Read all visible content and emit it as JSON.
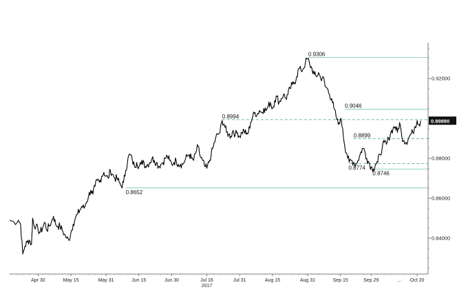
{
  "chart_data": {
    "type": "line",
    "title": "",
    "xlabel": "",
    "ylabel": "",
    "ylim": [
      0.822,
      0.938
    ],
    "yticks": [
      "0.92000",
      "0.90000",
      "0.88000",
      "0.86000",
      "0.84000"
    ],
    "ytick_values": [
      0.92,
      0.9,
      0.88,
      0.86,
      0.84
    ],
    "xtick_labels": [
      {
        "label": "Apr 30",
        "day": 13
      },
      {
        "label": "May 15",
        "day": 28
      },
      {
        "label": "May 31",
        "day": 44
      },
      {
        "label": "Jun 15",
        "day": 59
      },
      {
        "label": "Jun 30",
        "day": 74
      },
      {
        "label": "Jul 16",
        "day": 90
      },
      {
        "label": "Jul 31",
        "day": 105
      },
      {
        "label": "Aug 15",
        "day": 120
      },
      {
        "label": "Aug 31",
        "day": 136
      },
      {
        "label": "Sep 15",
        "day": 151
      },
      {
        "label": "Sep 29",
        "day": 165
      },
      {
        "label": "Oct 20",
        "day": 186
      }
    ],
    "year_label": {
      "label": "2017",
      "day": 90
    },
    "ellipsis_label": {
      "label": "...",
      "day": 178
    },
    "x_range_days": [
      0,
      191
    ],
    "last_value": "0.89890",
    "series": [
      {
        "color": "#000000",
        "points": [
          [
            0,
            0.849
          ],
          [
            2,
            0.848
          ],
          [
            4,
            0.849
          ],
          [
            5,
            0.847
          ],
          [
            6,
            0.832
          ],
          [
            7,
            0.836
          ],
          [
            8,
            0.838
          ],
          [
            9,
            0.839
          ],
          [
            10,
            0.837
          ],
          [
            10.5,
            0.85
          ],
          [
            11,
            0.847
          ],
          [
            12,
            0.846
          ],
          [
            13,
            0.844
          ],
          [
            14,
            0.843
          ],
          [
            15,
            0.845
          ],
          [
            16,
            0.848
          ],
          [
            17,
            0.844
          ],
          [
            18,
            0.846
          ],
          [
            19,
            0.848
          ],
          [
            20,
            0.851
          ],
          [
            21,
            0.847
          ],
          [
            22,
            0.846
          ],
          [
            23,
            0.846
          ],
          [
            24,
            0.844
          ],
          [
            25,
            0.842
          ],
          [
            26,
            0.84
          ],
          [
            27,
            0.839
          ],
          [
            28,
            0.843
          ],
          [
            29,
            0.847
          ],
          [
            30,
            0.85
          ],
          [
            31,
            0.852
          ],
          [
            32,
            0.854
          ],
          [
            33,
            0.856
          ],
          [
            34,
            0.855
          ],
          [
            35,
            0.858
          ],
          [
            36,
            0.861
          ],
          [
            37,
            0.864
          ],
          [
            38,
            0.862
          ],
          [
            39,
            0.866
          ],
          [
            40,
            0.869
          ],
          [
            41,
            0.868
          ],
          [
            42,
            0.871
          ],
          [
            43,
            0.873
          ],
          [
            44,
            0.871
          ],
          [
            45,
            0.87
          ],
          [
            46,
            0.874
          ],
          [
            47,
            0.872
          ],
          [
            48,
            0.87
          ],
          [
            49,
            0.87
          ],
          [
            50,
            0.868
          ],
          [
            51,
            0.866
          ],
          [
            52,
            0.868
          ],
          [
            53,
            0.874
          ],
          [
            54,
            0.88
          ],
          [
            55,
            0.882
          ],
          [
            56,
            0.879
          ],
          [
            57,
            0.876
          ],
          [
            58,
            0.878
          ],
          [
            59,
            0.876
          ],
          [
            60,
            0.877
          ],
          [
            61,
            0.879
          ],
          [
            62,
            0.876
          ],
          [
            63,
            0.877
          ],
          [
            64,
            0.878
          ],
          [
            65,
            0.88
          ],
          [
            66,
            0.879
          ],
          [
            67,
            0.878
          ],
          [
            68,
            0.876
          ],
          [
            69,
            0.877
          ],
          [
            70,
            0.878
          ],
          [
            71,
            0.88
          ],
          [
            72,
            0.881
          ],
          [
            73,
            0.879
          ],
          [
            74,
            0.877
          ],
          [
            75,
            0.878
          ],
          [
            76,
            0.879
          ],
          [
            77,
            0.877
          ],
          [
            78,
            0.877
          ],
          [
            79,
            0.877
          ],
          [
            80,
            0.879
          ],
          [
            81,
            0.881
          ],
          [
            82,
            0.882
          ],
          [
            83,
            0.88
          ],
          [
            84,
            0.879
          ],
          [
            85,
            0.883
          ],
          [
            86,
            0.886
          ],
          [
            87,
            0.881
          ],
          [
            88,
            0.879
          ],
          [
            89,
            0.876
          ],
          [
            90,
            0.875
          ],
          [
            91,
            0.878
          ],
          [
            92,
            0.882
          ],
          [
            93,
            0.886
          ],
          [
            94,
            0.89
          ],
          [
            95,
            0.892
          ],
          [
            96,
            0.893
          ],
          [
            97,
            0.899
          ],
          [
            98,
            0.897
          ],
          [
            99,
            0.893
          ],
          [
            100,
            0.892
          ],
          [
            101,
            0.891
          ],
          [
            102,
            0.894
          ],
          [
            103,
            0.892
          ],
          [
            104,
            0.893
          ],
          [
            105,
            0.891
          ],
          [
            106,
            0.893
          ],
          [
            107,
            0.894
          ],
          [
            108,
            0.892
          ],
          [
            109,
            0.893
          ],
          [
            110,
            0.898
          ],
          [
            111,
            0.901
          ],
          [
            112,
            0.903
          ],
          [
            113,
            0.902
          ],
          [
            114,
            0.904
          ],
          [
            115,
            0.903
          ],
          [
            116,
            0.905
          ],
          [
            117,
            0.904
          ],
          [
            118,
            0.906
          ],
          [
            119,
            0.908
          ],
          [
            120,
            0.905
          ],
          [
            121,
            0.909
          ],
          [
            122,
            0.911
          ],
          [
            123,
            0.908
          ],
          [
            124,
            0.91
          ],
          [
            125,
            0.912
          ],
          [
            126,
            0.91
          ],
          [
            127,
            0.912
          ],
          [
            128,
            0.915
          ],
          [
            129,
            0.917
          ],
          [
            130,
            0.918
          ],
          [
            131,
            0.921
          ],
          [
            132,
            0.925
          ],
          [
            133,
            0.924
          ],
          [
            134,
            0.925
          ],
          [
            135,
            0.928
          ],
          [
            136,
            0.93
          ],
          [
            137,
            0.927
          ],
          [
            138,
            0.925
          ],
          [
            139,
            0.922
          ],
          [
            140,
            0.921
          ],
          [
            141,
            0.923
          ],
          [
            142,
            0.92
          ],
          [
            143,
            0.921
          ],
          [
            144,
            0.916
          ],
          [
            145,
            0.915
          ],
          [
            146,
            0.912
          ],
          [
            147,
            0.91
          ],
          [
            148,
            0.905
          ],
          [
            149,
            0.901
          ],
          [
            150,
            0.897
          ],
          [
            151,
            0.9
          ],
          [
            152,
            0.895
          ],
          [
            153,
            0.886
          ],
          [
            154,
            0.882
          ],
          [
            155,
            0.878
          ],
          [
            156,
            0.879
          ],
          [
            157,
            0.878
          ],
          [
            158,
            0.877
          ],
          [
            159,
            0.879
          ],
          [
            160,
            0.882
          ],
          [
            161,
            0.885
          ],
          [
            162,
            0.884
          ],
          [
            163,
            0.88
          ],
          [
            164,
            0.878
          ],
          [
            165,
            0.8756
          ],
          [
            166,
            0.8746
          ],
          [
            167,
            0.877
          ],
          [
            168,
            0.878
          ],
          [
            169,
            0.882
          ],
          [
            170,
            0.885
          ],
          [
            171,
            0.888
          ],
          [
            172,
            0.887
          ],
          [
            173,
            0.89
          ],
          [
            174,
            0.893
          ],
          [
            175,
            0.895
          ],
          [
            176,
            0.896
          ],
          [
            177,
            0.893
          ],
          [
            178,
            0.898
          ],
          [
            179,
            0.891
          ],
          [
            180,
            0.889
          ],
          [
            181,
            0.888
          ],
          [
            182,
            0.89
          ],
          [
            183,
            0.892
          ],
          [
            184,
            0.893
          ],
          [
            185,
            0.896
          ],
          [
            186,
            0.899
          ],
          [
            187,
            0.897
          ],
          [
            187.6,
            0.8989
          ]
        ]
      }
    ],
    "reference_lines": [
      {
        "value": 0.9306,
        "label": "0.9306",
        "style": "solid",
        "color": "#7ecbc0",
        "from_day": 136
      },
      {
        "value": 0.9046,
        "label": "0.9046",
        "style": "solid",
        "color": "#7ecbc0",
        "from_day": 153
      },
      {
        "value": 0.8994,
        "label": "0.8994",
        "style": "dashed",
        "color": "#4caf9d",
        "from_day": 97
      },
      {
        "value": 0.8899,
        "label": "0.8899",
        "style": "dashed",
        "color": "#4caf9d",
        "from_day": 157
      },
      {
        "value": 0.8774,
        "label": "0.8774",
        "style": "dashed",
        "color": "#4caf9d",
        "from_day": 155
      },
      {
        "value": 0.8746,
        "label": "0.8746",
        "style": "solid",
        "color": "#7ecbc0",
        "from_day": 166
      },
      {
        "value": 0.8652,
        "label": "0.8652",
        "style": "solid",
        "color": "#7ecbc0",
        "from_day": 53
      }
    ],
    "grid": false
  }
}
